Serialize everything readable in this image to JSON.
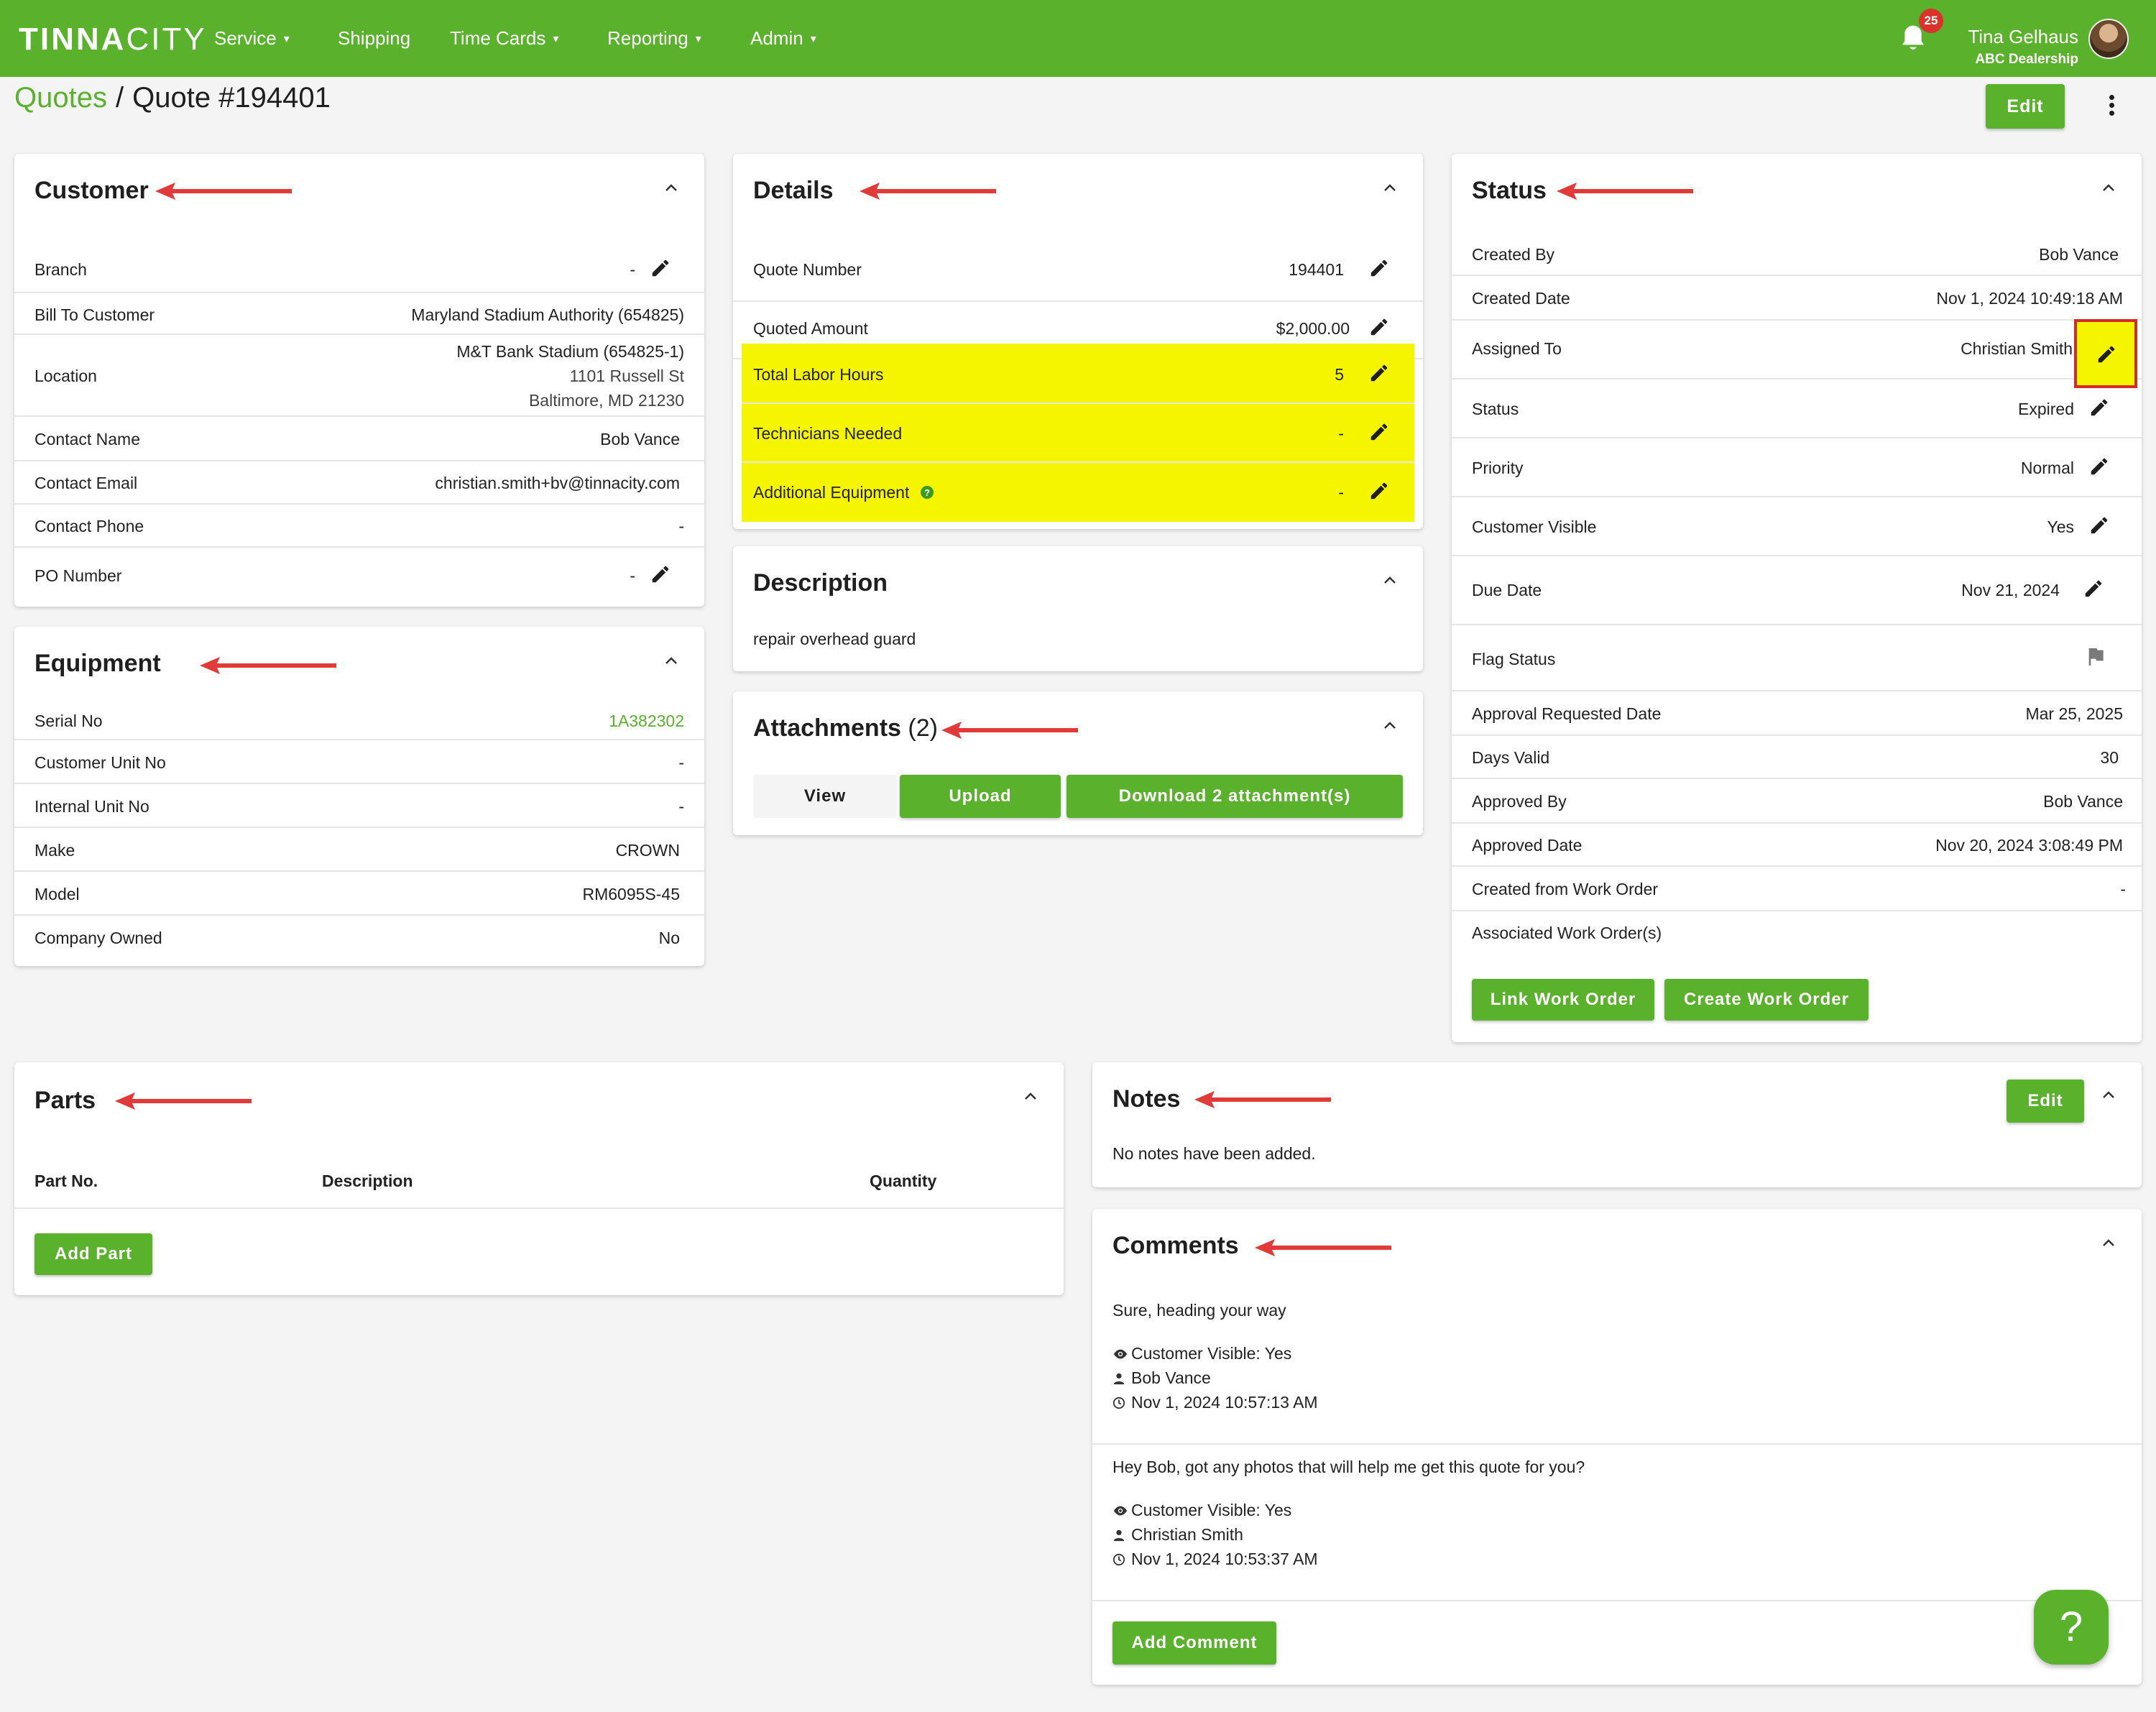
{
  "nav": {
    "logo_bold": "TINNA",
    "logo_thin": "CITY",
    "items": [
      {
        "label": "Service",
        "caret": true
      },
      {
        "label": "Shipping",
        "caret": false
      },
      {
        "label": "Time Cards",
        "caret": true
      },
      {
        "label": "Reporting",
        "caret": true
      },
      {
        "label": "Admin",
        "caret": true
      }
    ],
    "notification_count": "25",
    "user_name": "Tina Gelhaus",
    "user_org": "ABC Dealership"
  },
  "breadcrumb": {
    "parent": "Quotes",
    "separator": "/",
    "current": "Quote #194401"
  },
  "header": {
    "edit_label": "Edit"
  },
  "customer": {
    "title": "Customer",
    "rows": [
      {
        "label": "Branch",
        "value": "-"
      },
      {
        "label": "Bill To Customer",
        "value": "Maryland Stadium Authority (654825)"
      },
      {
        "label": "Location",
        "value": "M&T Bank Stadium (654825-1)",
        "line2": "1101 Russell St",
        "line3": "Baltimore, MD 21230"
      },
      {
        "label": "Contact Name",
        "value": "Bob Vance"
      },
      {
        "label": "Contact Email",
        "value": "christian.smith+bv@tinnacity.com"
      },
      {
        "label": "Contact Phone",
        "value": "-"
      },
      {
        "label": "PO Number",
        "value": "-"
      }
    ]
  },
  "equipment": {
    "title": "Equipment",
    "rows": [
      {
        "label": "Serial No",
        "value": "1A382302"
      },
      {
        "label": "Customer Unit No",
        "value": "-"
      },
      {
        "label": "Internal Unit No",
        "value": "-"
      },
      {
        "label": "Make",
        "value": "CROWN"
      },
      {
        "label": "Model",
        "value": "RM6095S-45"
      },
      {
        "label": "Company Owned",
        "value": "No"
      }
    ],
    "link_color": "#5ab12b"
  },
  "details": {
    "title": "Details",
    "rows": [
      {
        "label": "Quote Number",
        "value": "194401"
      },
      {
        "label": "Quoted Amount",
        "value": "$2,000.00"
      },
      {
        "label": "Total Labor Hours",
        "value": "5"
      },
      {
        "label": "Technicians Needed",
        "value": "-"
      },
      {
        "label": "Additional Equipment",
        "value": "-"
      }
    ],
    "highlight_color": "#f5f500"
  },
  "description": {
    "title": "Description",
    "text": "repair overhead guard"
  },
  "attachments": {
    "title": "Attachments",
    "count": "(2)",
    "view_label": "View",
    "upload_label": "Upload",
    "download_label": "Download 2 attachment(s)"
  },
  "status": {
    "title": "Status",
    "rows": [
      {
        "label": "Created By",
        "value": "Bob Vance"
      },
      {
        "label": "Created Date",
        "value": "Nov 1, 2024 10:49:18 AM"
      },
      {
        "label": "Assigned To",
        "value": "Christian Smith"
      },
      {
        "label": "Status",
        "value": "Expired"
      },
      {
        "label": "Priority",
        "value": "Normal"
      },
      {
        "label": "Customer Visible",
        "value": "Yes"
      },
      {
        "label": "Due Date",
        "value": "Nov 21, 2024"
      },
      {
        "label": "Flag Status",
        "value": ""
      },
      {
        "label": "Approval Requested Date",
        "value": "Mar 25, 2025"
      },
      {
        "label": "Days Valid",
        "value": "30"
      },
      {
        "label": "Approved By",
        "value": "Bob Vance"
      },
      {
        "label": "Approved Date",
        "value": "Nov 20, 2024 3:08:49 PM"
      },
      {
        "label": "Created from Work Order",
        "value": "-"
      },
      {
        "label": "Associated Work Order(s)",
        "value": ""
      }
    ],
    "link_work_order_label": "Link Work Order",
    "create_work_order_label": "Create Work Order"
  },
  "parts": {
    "title": "Parts",
    "columns": [
      "Part No.",
      "Description",
      "Quantity"
    ],
    "add_label": "Add Part"
  },
  "notes": {
    "title": "Notes",
    "edit_label": "Edit",
    "empty_text": "No notes have been added."
  },
  "comments": {
    "title": "Comments",
    "items": [
      {
        "text": "Sure, heading your way",
        "visible": "Customer Visible: Yes",
        "author": "Bob Vance",
        "time": "Nov 1, 2024 10:57:13 AM"
      },
      {
        "text": "Hey Bob, got any photos that will help me get this quote for you?",
        "visible": "Customer Visible: Yes",
        "author": "Christian Smith",
        "time": "Nov 1, 2024 10:53:37 AM"
      }
    ],
    "add_label": "Add Comment"
  },
  "help": {
    "label": "?"
  },
  "colors": {
    "brand": "#5ab12b",
    "annotation_arrow": "#e03a3a",
    "highlight": "#f5f500",
    "focus_box": "#d42a2a"
  },
  "icons": [
    "bell-icon",
    "pencil-icon",
    "chevron-up-icon",
    "flag-icon",
    "eye-icon",
    "person-icon",
    "clock-icon",
    "help-question-icon",
    "kebab-menu-icon",
    "info-circle-icon"
  ]
}
